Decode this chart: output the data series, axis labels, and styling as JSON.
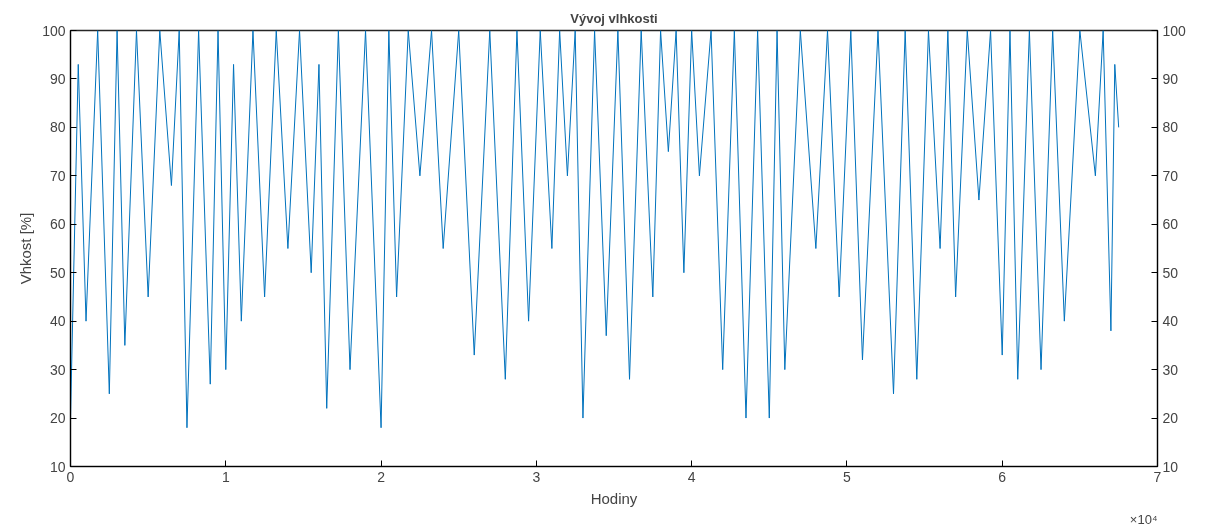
{
  "chart_data": {
    "type": "line",
    "title": "Vývoj vlhkosti",
    "xlabel": "Hodiny",
    "ylabel": "Vhkost [%]",
    "annotations": [
      "×10⁴"
    ],
    "x": [
      0,
      0.05,
      0.1,
      0.175,
      0.25,
      0.3,
      0.35,
      0.425,
      0.5,
      0.575,
      0.65,
      0.7,
      0.75,
      0.825,
      0.9,
      0.95,
      1.0,
      1.05,
      1.1,
      1.175,
      1.25,
      1.325,
      1.4,
      1.475,
      1.55,
      1.6,
      1.65,
      1.725,
      1.8,
      1.9,
      2.0,
      2.05,
      2.1,
      2.175,
      2.25,
      2.325,
      2.4,
      2.5,
      2.6,
      2.7,
      2.8,
      2.875,
      2.95,
      3.025,
      3.1,
      3.15,
      3.2,
      3.25,
      3.3,
      3.375,
      3.45,
      3.525,
      3.6,
      3.675,
      3.75,
      3.8,
      3.85,
      3.9,
      3.95,
      4.0,
      4.05,
      4.125,
      4.2,
      4.275,
      4.35,
      4.425,
      4.5,
      4.55,
      4.6,
      4.7,
      4.8,
      4.875,
      4.95,
      5.025,
      5.1,
      5.2,
      5.3,
      5.375,
      5.45,
      5.525,
      5.6,
      5.65,
      5.7,
      5.775,
      5.85,
      5.925,
      6.0,
      6.05,
      6.1,
      6.175,
      6.25,
      6.325,
      6.4,
      6.5,
      6.6,
      6.65,
      6.7,
      6.725,
      6.75
    ],
    "series": [
      {
        "color": "#0072bd",
        "values": [
          20,
          93,
          40,
          100,
          25,
          100,
          35,
          100,
          45,
          100,
          68,
          100,
          18,
          100,
          27,
          100,
          30,
          93,
          40,
          100,
          45,
          100,
          55,
          100,
          50,
          93,
          22,
          100,
          30,
          100,
          18,
          100,
          45,
          100,
          70,
          100,
          55,
          100,
          33,
          100,
          28,
          100,
          40,
          100,
          55,
          100,
          70,
          100,
          20,
          100,
          37,
          100,
          28,
          100,
          45,
          100,
          75,
          100,
          50,
          100,
          70,
          100,
          30,
          100,
          20,
          100,
          20,
          100,
          30,
          100,
          55,
          100,
          45,
          100,
          32,
          100,
          25,
          100,
          28,
          100,
          55,
          100,
          45,
          100,
          65,
          100,
          33,
          100,
          28,
          100,
          30,
          100,
          40,
          100,
          70,
          100,
          38,
          93,
          80
        ]
      }
    ],
    "xlim": [
      0,
      7
    ],
    "xticks": [
      0,
      1,
      2,
      3,
      4,
      5,
      6,
      7
    ],
    "ylim": [
      10,
      100
    ],
    "yticks": [
      10,
      20,
      30,
      40,
      50,
      60,
      70,
      80,
      90,
      100
    ],
    "y2lim": [
      10,
      100
    ],
    "y2ticks": [
      10,
      20,
      30,
      40,
      50,
      60,
      70,
      80,
      90,
      100
    ],
    "grid": false,
    "marker": "none",
    "line_style": "solid"
  }
}
